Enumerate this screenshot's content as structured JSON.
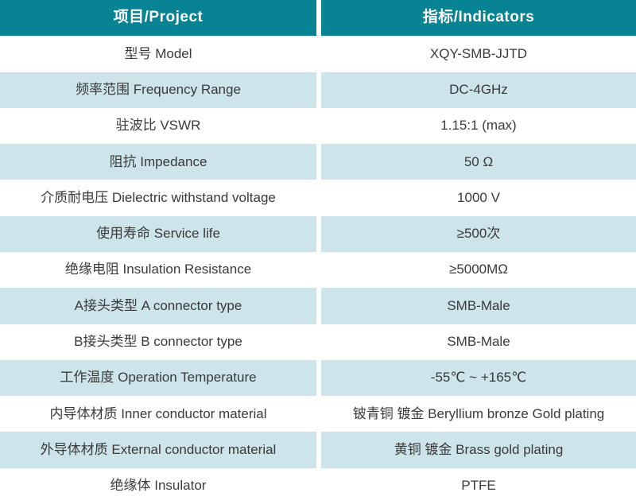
{
  "chart_data": {
    "type": "table",
    "title": "RF connector specification table",
    "columns": [
      "项目/Project",
      "指标/Indicators"
    ],
    "rows": [
      [
        "型号 Model",
        "XQY-SMB-JJTD"
      ],
      [
        "频率范围 Frequency Range",
        "DC-4GHz"
      ],
      [
        "驻波比 VSWR",
        "1.15:1 (max)"
      ],
      [
        "阻抗 Impedance",
        "50 Ω"
      ],
      [
        "介质耐电压 Dielectric withstand voltage",
        "1000 V"
      ],
      [
        "使用寿命 Service life",
        "≥500次"
      ],
      [
        "绝缘电阻 Insulation Resistance",
        "≥5000MΩ"
      ],
      [
        "A接头类型 A connector type",
        "SMB-Male"
      ],
      [
        "B接头类型 B connector type",
        "SMB-Male"
      ],
      [
        "工作温度 Operation Temperature",
        "-55℃ ~ +165℃"
      ],
      [
        "内导体材质 Inner conductor material",
        "铍青铜 镀金 Beryllium bronze Gold plating"
      ],
      [
        "外导体材质 External conductor material",
        "黄铜 镀金 Brass gold plating"
      ],
      [
        "绝缘体 Insulator",
        "PTFE"
      ]
    ],
    "layout": {
      "header_position": "top",
      "alternating_rows": true,
      "first_data_row_background": "white"
    }
  },
  "colors": {
    "header_bg": "#088394",
    "header_text": "#ffffff",
    "alt_row_bg": "#cce4ea",
    "row_bg": "#ffffff",
    "body_text": "#3a3a3a",
    "divider": "#ffffff"
  }
}
